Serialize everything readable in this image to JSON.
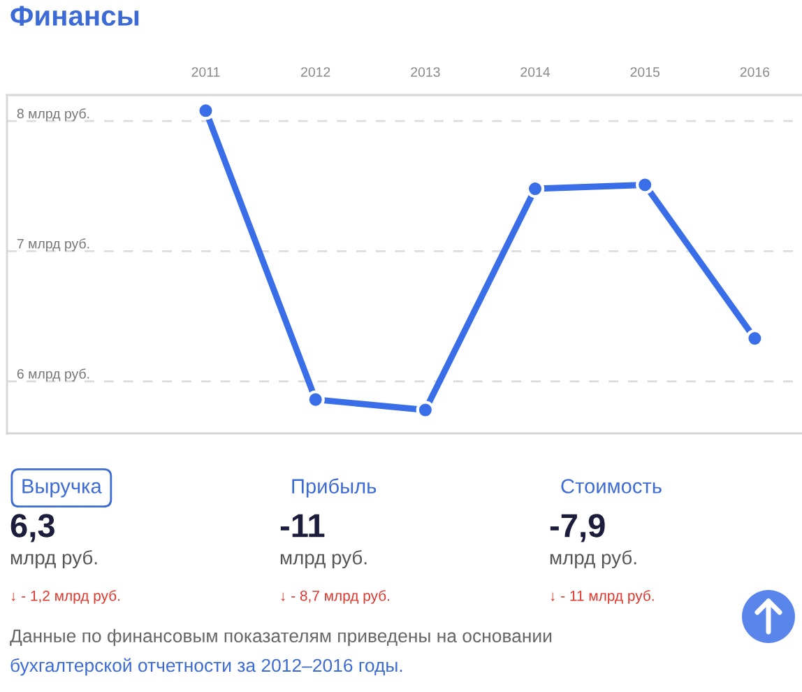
{
  "chart_data": [
    {
      "type": "line",
      "title": "Финансы",
      "categories": [
        "2011",
        "2012",
        "2013",
        "2014",
        "2015",
        "2016"
      ],
      "series": [
        {
          "color": "#3a6ee8",
          "values": [
            8.08,
            5.86,
            5.78,
            7.48,
            7.51,
            6.33
          ]
        }
      ],
      "ylim": [
        5.6,
        8.2
      ],
      "yticks": [
        {
          "value": 6,
          "label": "6 млрд руб."
        },
        {
          "value": 7,
          "label": "7 млрд руб."
        },
        {
          "value": 8,
          "label": "8 млрд руб."
        }
      ],
      "grid": "y",
      "marker": "circle",
      "line_style": "solid"
    },
    {
      "type": "other",
      "annotations": [
        "Выручка",
        "6,3",
        "млрд руб.",
        "↓ - 1,2 млрд руб.",
        "Прибыль",
        "-11",
        "млрд руб.",
        "↓ - 8,7 млрд руб.",
        "Стоимость",
        "-7,9",
        "млрд руб.",
        "↓ - 11 млрд руб.",
        "Данные по финансовым показателям приведены на основании",
        "бухгалтерской отчетности за 2012–2016 годы."
      ]
    }
  ]
}
